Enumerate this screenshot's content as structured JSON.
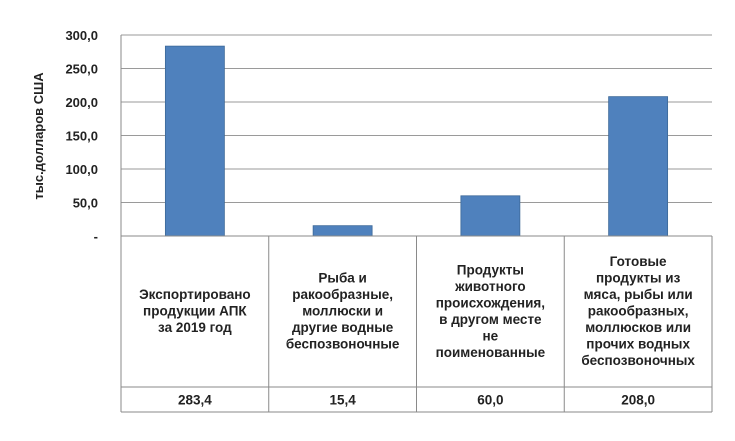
{
  "chart_data": {
    "type": "bar",
    "title": "",
    "xlabel": "",
    "ylabel": "тыс.долларов США",
    "ylim": [
      0,
      300
    ],
    "y_ticks": [
      "-",
      "50,0",
      "100,0",
      "150,0",
      "200,0",
      "250,0",
      "300,0"
    ],
    "grid": true,
    "legend": "none",
    "bar_color": "#4f81bd",
    "categories": [
      [
        "Экспортировано",
        "продукции АПК",
        "за 2019 год"
      ],
      [
        "Рыба и",
        "ракообразные,",
        "моллюски и",
        "другие водные",
        "беспозвоночные"
      ],
      [
        "Продукты",
        "животного",
        "происхождения,",
        "в другом месте",
        "не",
        "поименованные"
      ],
      [
        "Готовые",
        "продукты из",
        "мяса, рыбы или",
        "ракообразных,",
        "моллюсков или",
        "прочих водных",
        "беспозвоночных"
      ]
    ],
    "values": [
      283.4,
      15.4,
      60.0,
      208.0
    ],
    "value_labels": [
      "283,4",
      "15,4",
      "60,0",
      "208,0"
    ]
  }
}
